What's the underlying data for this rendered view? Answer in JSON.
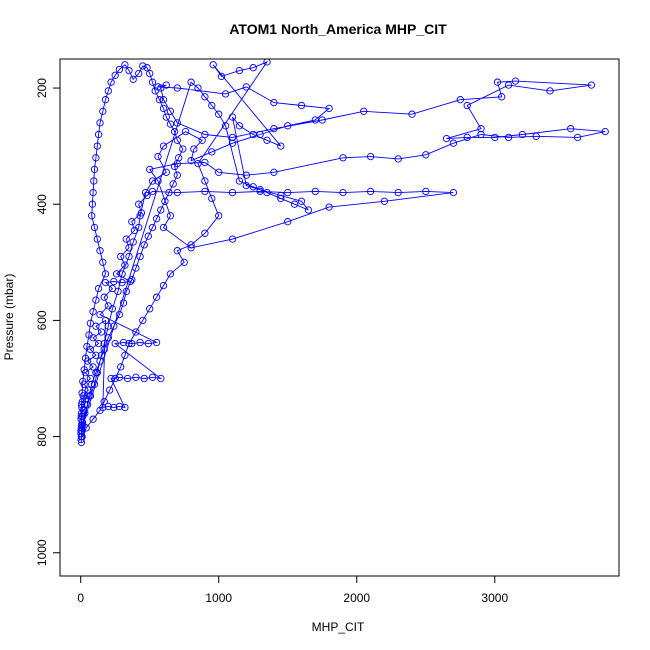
{
  "chart_data": {
    "type": "line",
    "title": "ATOM1 North_America MHP_CIT",
    "xlabel": "MHP_CIT",
    "ylabel": "Pressure (mbar)",
    "xlim": [
      -150,
      3900
    ],
    "ylim": [
      1040,
      150
    ],
    "y_reversed": true,
    "x_ticks": [
      0,
      1000,
      2000,
      3000
    ],
    "y_ticks": [
      200,
      400,
      600,
      800,
      1000
    ],
    "grid": false,
    "legend": "none",
    "series_color": "#0000ff",
    "marker": "open-circle",
    "series": [
      {
        "name": "",
        "points": [
          [
            5,
            810
          ],
          [
            3,
            805
          ],
          [
            8,
            800
          ],
          [
            2,
            795
          ],
          [
            10,
            790
          ],
          [
            4,
            785
          ],
          [
            6,
            780
          ],
          [
            12,
            775
          ],
          [
            3,
            770
          ],
          [
            15,
            765
          ],
          [
            6,
            760
          ],
          [
            20,
            755
          ],
          [
            9,
            750
          ],
          [
            30,
            745
          ],
          [
            12,
            740
          ],
          [
            40,
            735
          ],
          [
            18,
            730
          ],
          [
            55,
            720
          ],
          [
            25,
            710
          ],
          [
            70,
            700
          ],
          [
            35,
            690
          ],
          [
            90,
            680
          ],
          [
            50,
            670
          ],
          [
            110,
            660
          ],
          [
            70,
            650
          ],
          [
            130,
            640
          ],
          [
            90,
            630
          ],
          [
            150,
            620
          ],
          [
            110,
            610
          ],
          [
            180,
            600
          ],
          [
            160,
            750
          ],
          [
            200,
            748
          ],
          [
            240,
            750
          ],
          [
            280,
            748
          ],
          [
            320,
            750
          ],
          [
            220,
            700
          ],
          [
            280,
            698
          ],
          [
            340,
            700
          ],
          [
            400,
            698
          ],
          [
            460,
            700
          ],
          [
            520,
            698
          ],
          [
            580,
            700
          ],
          [
            250,
            640
          ],
          [
            310,
            638
          ],
          [
            370,
            640
          ],
          [
            430,
            638
          ],
          [
            490,
            640
          ],
          [
            550,
            638
          ],
          [
            140,
            590
          ],
          [
            200,
            575
          ],
          [
            170,
            560
          ],
          [
            230,
            545
          ],
          [
            180,
            535
          ],
          [
            240,
            533
          ],
          [
            300,
            535
          ],
          [
            360,
            533
          ],
          [
            260,
            520
          ],
          [
            320,
            505
          ],
          [
            290,
            490
          ],
          [
            350,
            475
          ],
          [
            330,
            460
          ],
          [
            390,
            445
          ],
          [
            370,
            430
          ],
          [
            440,
            415
          ],
          [
            420,
            400
          ],
          [
            480,
            385
          ],
          [
            520,
            378
          ],
          [
            700,
            380
          ],
          [
            900,
            378
          ],
          [
            1100,
            380
          ],
          [
            1300,
            378
          ],
          [
            1500,
            380
          ],
          [
            1700,
            378
          ],
          [
            1900,
            380
          ],
          [
            2100,
            378
          ],
          [
            2300,
            380
          ],
          [
            2500,
            378
          ],
          [
            2700,
            380
          ],
          [
            2200,
            395
          ],
          [
            1800,
            405
          ],
          [
            1500,
            430
          ],
          [
            1100,
            460
          ],
          [
            800,
            475
          ],
          [
            600,
            440
          ],
          [
            650,
            420
          ],
          [
            560,
            360
          ],
          [
            500,
            340
          ],
          [
            700,
            330
          ],
          [
            900,
            328
          ],
          [
            1000,
            345
          ],
          [
            1200,
            350
          ],
          [
            1400,
            345
          ],
          [
            1900,
            320
          ],
          [
            2100,
            318
          ],
          [
            2300,
            322
          ],
          [
            2500,
            315
          ],
          [
            2700,
            295
          ],
          [
            2900,
            280
          ],
          [
            3100,
            285
          ],
          [
            3300,
            283
          ],
          [
            3600,
            285
          ],
          [
            3800,
            275
          ],
          [
            3550,
            270
          ],
          [
            3200,
            280
          ],
          [
            3000,
            285
          ],
          [
            2800,
            285
          ],
          [
            2650,
            287
          ],
          [
            2900,
            270
          ],
          [
            2800,
            230
          ],
          [
            3100,
            195
          ],
          [
            3400,
            205
          ],
          [
            3700,
            195
          ],
          [
            3150,
            188
          ],
          [
            3020,
            190
          ],
          [
            3050,
            215
          ],
          [
            2750,
            220
          ],
          [
            2400,
            245
          ],
          [
            2050,
            240
          ],
          [
            1750,
            255
          ],
          [
            1400,
            270
          ],
          [
            1100,
            285
          ],
          [
            900,
            280
          ],
          [
            700,
            260
          ],
          [
            650,
            240
          ],
          [
            600,
            220
          ],
          [
            580,
            200
          ],
          [
            620,
            195
          ],
          [
            560,
            198
          ],
          [
            700,
            200
          ],
          [
            1050,
            210
          ],
          [
            1200,
            198
          ],
          [
            1400,
            225
          ],
          [
            1600,
            230
          ],
          [
            1800,
            235
          ],
          [
            1700,
            255
          ],
          [
            1500,
            265
          ],
          [
            1300,
            280
          ],
          [
            1100,
            295
          ],
          [
            950,
            310
          ],
          [
            800,
            325
          ],
          [
            820,
            305
          ],
          [
            880,
            290
          ],
          [
            760,
            275
          ],
          [
            600,
            300
          ],
          [
            560,
            318
          ],
          [
            620,
            345
          ],
          [
            520,
            360
          ],
          [
            470,
            380
          ],
          [
            430,
            420
          ],
          [
            420,
            440
          ],
          [
            380,
            465
          ],
          [
            350,
            490
          ],
          [
            300,
            520
          ],
          [
            270,
            550
          ],
          [
            230,
            580
          ],
          [
            200,
            610
          ],
          [
            170,
            640
          ],
          [
            150,
            660
          ],
          [
            120,
            690
          ],
          [
            100,
            710
          ],
          [
            70,
            730
          ],
          [
            50,
            745
          ],
          [
            30,
            760
          ],
          [
            15,
            780
          ],
          [
            5,
            800
          ],
          [
            60,
            730
          ],
          [
            80,
            710
          ],
          [
            110,
            690
          ],
          [
            140,
            670
          ],
          [
            170,
            650
          ],
          [
            200,
            630
          ],
          [
            240,
            610
          ],
          [
            280,
            590
          ],
          [
            310,
            570
          ],
          [
            330,
            550
          ],
          [
            370,
            530
          ],
          [
            400,
            510
          ],
          [
            430,
            490
          ],
          [
            460,
            470
          ],
          [
            490,
            455
          ],
          [
            520,
            440
          ],
          [
            550,
            425
          ],
          [
            580,
            410
          ],
          [
            610,
            395
          ],
          [
            640,
            380
          ],
          [
            670,
            365
          ],
          [
            700,
            350
          ],
          [
            680,
            335
          ],
          [
            710,
            320
          ],
          [
            740,
            305
          ],
          [
            700,
            290
          ],
          [
            680,
            275
          ],
          [
            650,
            262
          ],
          [
            620,
            250
          ],
          [
            600,
            235
          ],
          [
            570,
            220
          ],
          [
            540,
            205
          ],
          [
            520,
            190
          ],
          [
            500,
            175
          ],
          [
            480,
            165
          ],
          [
            450,
            162
          ],
          [
            420,
            175
          ],
          [
            380,
            185
          ],
          [
            350,
            170
          ],
          [
            320,
            160
          ],
          [
            280,
            168
          ],
          [
            250,
            178
          ],
          [
            220,
            190
          ],
          [
            200,
            205
          ],
          [
            180,
            220
          ],
          [
            160,
            240
          ],
          [
            140,
            260
          ],
          [
            130,
            280
          ],
          [
            120,
            300
          ],
          [
            110,
            320
          ],
          [
            100,
            340
          ],
          [
            95,
            360
          ],
          [
            90,
            380
          ],
          [
            85,
            400
          ],
          [
            80,
            420
          ],
          [
            100,
            440
          ],
          [
            120,
            460
          ],
          [
            140,
            480
          ],
          [
            160,
            500
          ],
          [
            180,
            520
          ],
          [
            130,
            545
          ],
          [
            110,
            565
          ],
          [
            90,
            585
          ],
          [
            70,
            605
          ],
          [
            60,
            625
          ],
          [
            45,
            645
          ],
          [
            35,
            665
          ],
          [
            25,
            685
          ],
          [
            15,
            705
          ],
          [
            10,
            725
          ],
          [
            6,
            745
          ],
          [
            4,
            765
          ],
          [
            2,
            790
          ],
          [
            800,
            190
          ],
          [
            850,
            200
          ],
          [
            900,
            215
          ],
          [
            950,
            230
          ],
          [
            1000,
            245
          ],
          [
            1050,
            265
          ],
          [
            1150,
            360
          ],
          [
            1250,
            370
          ],
          [
            1350,
            380
          ],
          [
            1450,
            390
          ],
          [
            1550,
            400
          ],
          [
            1650,
            410
          ],
          [
            1600,
            395
          ],
          [
            1450,
            385
          ],
          [
            1300,
            375
          ],
          [
            1200,
            368
          ],
          [
            1100,
            250
          ],
          [
            1150,
            265
          ],
          [
            1250,
            280
          ],
          [
            1350,
            290
          ],
          [
            1450,
            300
          ],
          [
            960,
            160
          ],
          [
            1020,
            180
          ],
          [
            1150,
            170
          ],
          [
            1250,
            165
          ],
          [
            1350,
            155
          ],
          [
            850,
            330
          ],
          [
            900,
            360
          ],
          [
            950,
            390
          ],
          [
            1000,
            420
          ],
          [
            900,
            450
          ],
          [
            800,
            470
          ],
          [
            700,
            480
          ],
          [
            750,
            500
          ],
          [
            650,
            520
          ],
          [
            600,
            540
          ],
          [
            550,
            560
          ],
          [
            500,
            580
          ],
          [
            450,
            600
          ],
          [
            400,
            620
          ],
          [
            350,
            640
          ],
          [
            320,
            660
          ],
          [
            290,
            680
          ],
          [
            250,
            700
          ],
          [
            210,
            720
          ],
          [
            170,
            740
          ],
          [
            140,
            755
          ],
          [
            90,
            770
          ],
          [
            40,
            785
          ],
          [
            10,
            800
          ]
        ]
      }
    ]
  }
}
